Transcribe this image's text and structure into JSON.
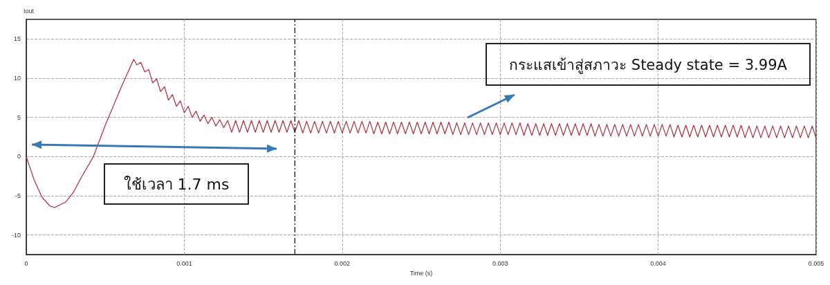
{
  "chart_data": {
    "type": "line",
    "xlabel": "Time (s)",
    "ylabel": "Iout",
    "color": "#b02a3c",
    "x": [
      0,
      5e-05,
      0.0001,
      0.00015,
      0.00018,
      0.00025,
      0.0003,
      0.00035,
      0.000425,
      0.0005,
      0.0006,
      0.00068,
      0.0007,
      0.000725,
      0.00075,
      0.000775,
      0.0008,
      0.000825,
      0.00085,
      0.000875,
      0.0009,
      0.000925,
      0.00095,
      0.000975,
      0.001,
      0.001025,
      0.00105,
      0.001075,
      0.0011,
      0.001125,
      0.00115,
      0.001175,
      0.0012,
      0.001225,
      0.00125,
      0.001275,
      0.0013,
      0.001325,
      0.00135,
      0.001375,
      0.0014,
      0.001425,
      0.00145,
      0.001475,
      0.0015,
      0.001525,
      0.00155,
      0.001575,
      0.0016,
      0.001625,
      0.00165,
      0.001675,
      0.0017,
      0.001725,
      0.00175,
      0.001775,
      0.0018,
      0.001825,
      0.00185,
      0.001875,
      0.0019,
      0.001925,
      0.00195,
      0.001975,
      0.002,
      0.002025,
      0.00205,
      0.002075,
      0.0021,
      0.002125,
      0.00215,
      0.002175,
      0.0022,
      0.002225,
      0.00225,
      0.002275,
      0.0023,
      0.002325,
      0.00235,
      0.002375,
      0.0024,
      0.002425,
      0.00245,
      0.002475,
      0.0025,
      0.002525,
      0.00255,
      0.002575,
      0.0026,
      0.002625,
      0.00265,
      0.002675,
      0.0027,
      0.002725,
      0.00275,
      0.002775,
      0.0028,
      0.002825,
      0.00285,
      0.002875,
      0.0029,
      0.002925,
      0.00295,
      0.002975,
      0.003,
      0.003025,
      0.00305,
      0.003075,
      0.0031,
      0.003125,
      0.00315,
      0.003175,
      0.0032,
      0.003225,
      0.00325,
      0.003275,
      0.0033,
      0.003325,
      0.00335,
      0.003375,
      0.0034,
      0.003425,
      0.00345,
      0.003475,
      0.0035,
      0.003525,
      0.00355,
      0.003575,
      0.0036,
      0.003625,
      0.00365,
      0.003675,
      0.0037,
      0.003725,
      0.00375,
      0.003775,
      0.0038,
      0.003825,
      0.00385,
      0.003875,
      0.0039,
      0.003925,
      0.00395,
      0.003975,
      0.004,
      0.004025,
      0.00405,
      0.004075,
      0.0041,
      0.004125,
      0.00415,
      0.004175,
      0.0042,
      0.004225,
      0.00425,
      0.004275,
      0.0043,
      0.004325,
      0.00435,
      0.004375,
      0.0044,
      0.004425,
      0.00445,
      0.004475,
      0.0045,
      0.004525,
      0.00455,
      0.004575,
      0.0046,
      0.004625,
      0.00465,
      0.004675,
      0.0047,
      0.004725,
      0.00475,
      0.004775,
      0.0048,
      0.004825,
      0.00485,
      0.004875,
      0.0049,
      0.004925,
      0.00495,
      0.004975,
      0.005
    ],
    "values": [
      0,
      -3.0,
      -5.2,
      -6.3,
      -6.5,
      -5.8,
      -4.5,
      -2.6,
      0,
      4.0,
      8.8,
      12.4,
      11.7,
      12.0,
      10.8,
      11.1,
      9.4,
      9.9,
      8.3,
      8.9,
      7.2,
      7.9,
      6.4,
      7.1,
      5.6,
      6.4,
      5.0,
      5.8,
      4.5,
      5.3,
      4.2,
      5.0,
      3.9,
      4.7,
      3.7,
      4.6,
      3.1,
      4.6,
      3.1,
      4.6,
      3.1,
      4.6,
      3.1,
      4.6,
      3.1,
      4.6,
      3.1,
      4.6,
      3.1,
      4.6,
      3.1,
      4.6,
      3.1,
      4.6,
      3.0,
      4.5,
      3.0,
      4.5,
      3.0,
      4.5,
      3.0,
      4.5,
      3.0,
      4.5,
      3.0,
      4.5,
      3.0,
      4.5,
      3.0,
      4.5,
      3.0,
      4.5,
      2.9,
      4.4,
      2.9,
      4.4,
      2.9,
      4.4,
      2.9,
      4.4,
      2.9,
      4.4,
      2.9,
      4.4,
      2.9,
      4.4,
      2.9,
      4.4,
      2.9,
      4.4,
      2.9,
      4.4,
      2.8,
      4.3,
      2.8,
      4.3,
      2.8,
      4.3,
      2.8,
      4.3,
      2.8,
      4.3,
      2.8,
      4.3,
      2.8,
      4.3,
      2.8,
      4.3,
      2.8,
      4.3,
      2.7,
      4.2,
      2.7,
      4.2,
      2.7,
      4.2,
      2.7,
      4.2,
      2.7,
      4.2,
      2.7,
      4.2,
      2.7,
      4.2,
      2.7,
      4.2,
      2.7,
      4.2,
      2.6,
      4.1,
      2.6,
      4.1,
      2.6,
      4.1,
      2.6,
      4.1,
      2.6,
      4.1,
      2.6,
      4.1,
      2.6,
      4.1,
      2.6,
      4.1,
      2.6,
      4.1,
      2.6,
      4.1,
      2.5,
      4.0,
      2.5,
      4.0,
      2.5,
      4.0,
      2.5,
      4.0,
      2.5,
      4.0,
      2.5,
      4.0,
      2.5,
      4.0,
      2.5,
      4.0,
      2.5,
      4.0,
      2.4,
      3.9,
      2.4,
      3.9,
      2.4,
      3.9,
      2.4,
      3.9,
      2.4,
      3.9,
      2.4,
      3.9,
      2.4,
      3.9,
      2.4,
      3.9,
      2.4,
      3.9,
      2.3
    ],
    "xlim": [
      0,
      0.005
    ],
    "xticks": [
      0,
      0.001,
      0.002,
      0.003,
      0.004,
      0.005
    ],
    "ylim": [
      -12.5,
      17.5
    ],
    "yticks": [
      -10,
      -5,
      0,
      5,
      10,
      15
    ],
    "grid": true,
    "line_style": "solid",
    "ref_lines": [
      {
        "axis": "x",
        "value": 0.0017,
        "color": "#000000",
        "line_style": "dashed"
      }
    ],
    "annotations": [
      "ใช้เวลา 1.7 ms",
      "กระแสเข้าสู่สภาวะ Steady state = 3.99A"
    ]
  }
}
